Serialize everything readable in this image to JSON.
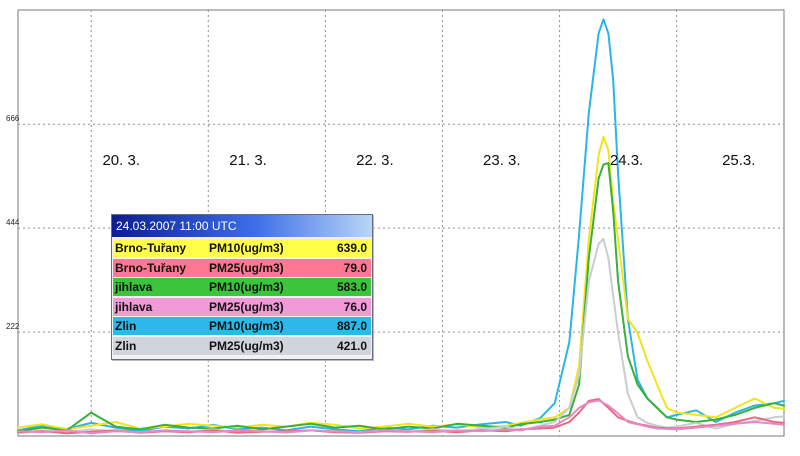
{
  "chart_data": {
    "type": "line",
    "x_unit": "hours since 20.03.2007 00:00",
    "y_ticks": [
      222,
      444,
      666
    ],
    "ylim": [
      0,
      910
    ],
    "xlim": [
      -15,
      142
    ],
    "grid": true,
    "day_labels": [
      {
        "text": "20. 3.",
        "x": 6
      },
      {
        "text": "21. 3.",
        "x": 32
      },
      {
        "text": "22. 3.",
        "x": 58
      },
      {
        "text": "23. 3.",
        "x": 84
      },
      {
        "text": "24.3.",
        "x": 110
      },
      {
        "text": "25.3.",
        "x": 133
      }
    ],
    "day_separators_x": [
      0,
      24,
      48,
      72,
      96,
      120
    ],
    "series": [
      {
        "name": "Zlin PM10",
        "color": "#29b6e6",
        "x": [
          -15,
          -10,
          -5,
          0,
          5,
          10,
          15,
          20,
          25,
          30,
          35,
          40,
          45,
          50,
          55,
          60,
          65,
          70,
          75,
          80,
          85,
          88,
          92,
          95,
          98,
          100,
          102,
          104,
          105,
          106,
          107,
          108,
          110,
          112,
          114,
          116,
          118,
          120,
          124,
          128,
          132,
          136,
          140,
          142
        ],
        "y": [
          12,
          22,
          15,
          28,
          18,
          10,
          20,
          16,
          24,
          14,
          18,
          12,
          20,
          14,
          10,
          18,
          14,
          22,
          18,
          25,
          30,
          22,
          38,
          70,
          200,
          430,
          690,
          860,
          890,
          860,
          760,
          560,
          250,
          120,
          80,
          60,
          40,
          45,
          55,
          30,
          50,
          65,
          70,
          75
        ]
      },
      {
        "name": "Brno-Tuřany PM10",
        "color": "#f0e41c",
        "x": [
          -15,
          -10,
          -5,
          0,
          5,
          10,
          15,
          20,
          25,
          30,
          35,
          40,
          45,
          50,
          55,
          60,
          65,
          70,
          75,
          80,
          85,
          88,
          92,
          95,
          98,
          100,
          102,
          104,
          105,
          106,
          107,
          108,
          110,
          112,
          114,
          116,
          118,
          120,
          124,
          128,
          132,
          136,
          140,
          142
        ],
        "y": [
          18,
          25,
          14,
          22,
          30,
          16,
          20,
          26,
          22,
          18,
          24,
          20,
          28,
          24,
          16,
          20,
          26,
          20,
          25,
          18,
          22,
          28,
          35,
          40,
          60,
          150,
          420,
          600,
          639,
          610,
          500,
          420,
          250,
          220,
          160,
          110,
          60,
          50,
          45,
          40,
          60,
          80,
          60,
          58
        ]
      },
      {
        "name": "jihlava PM10",
        "color": "#3ab03a",
        "x": [
          -15,
          -10,
          -5,
          0,
          5,
          10,
          15,
          20,
          25,
          30,
          35,
          40,
          45,
          50,
          55,
          60,
          65,
          70,
          75,
          80,
          85,
          88,
          92,
          95,
          98,
          100,
          102,
          104,
          105,
          106,
          107,
          108,
          110,
          112,
          114,
          116,
          118,
          120,
          124,
          128,
          132,
          136,
          140,
          142
        ],
        "y": [
          10,
          18,
          12,
          50,
          20,
          14,
          24,
          18,
          16,
          22,
          14,
          20,
          26,
          18,
          22,
          14,
          20,
          16,
          26,
          22,
          18,
          25,
          30,
          35,
          45,
          110,
          380,
          550,
          580,
          583,
          480,
          330,
          170,
          110,
          80,
          60,
          40,
          35,
          30,
          35,
          45,
          60,
          70,
          65
        ]
      },
      {
        "name": "Zlin PM25",
        "color": "#c8ccd4",
        "x": [
          -15,
          -10,
          -5,
          0,
          5,
          10,
          15,
          20,
          25,
          30,
          35,
          40,
          45,
          50,
          55,
          60,
          65,
          70,
          75,
          80,
          85,
          88,
          92,
          95,
          98,
          100,
          102,
          104,
          105,
          106,
          107,
          108,
          110,
          112,
          114,
          116,
          118,
          120,
          124,
          128,
          132,
          136,
          140,
          142
        ],
        "y": [
          6,
          12,
          8,
          14,
          10,
          8,
          12,
          9,
          14,
          8,
          10,
          7,
          12,
          9,
          8,
          12,
          9,
          14,
          11,
          15,
          20,
          12,
          22,
          30,
          60,
          130,
          330,
          410,
          421,
          380,
          300,
          220,
          90,
          40,
          28,
          22,
          18,
          20,
          28,
          16,
          26,
          32,
          40,
          42
        ]
      },
      {
        "name": "Brno-Tuřany PM25",
        "color": "#e86b7e",
        "x": [
          -15,
          -10,
          -5,
          0,
          5,
          10,
          15,
          20,
          25,
          30,
          35,
          40,
          45,
          50,
          55,
          60,
          65,
          70,
          75,
          80,
          85,
          88,
          92,
          95,
          98,
          100,
          102,
          104,
          106,
          108,
          110,
          112,
          114,
          116,
          120,
          124,
          128,
          132,
          136,
          140,
          142
        ],
        "y": [
          8,
          10,
          6,
          9,
          12,
          7,
          10,
          8,
          12,
          7,
          9,
          10,
          12,
          8,
          7,
          10,
          9,
          11,
          8,
          12,
          10,
          14,
          16,
          18,
          30,
          50,
          75,
          79,
          60,
          40,
          32,
          26,
          22,
          18,
          16,
          20,
          24,
          30,
          40,
          30,
          28
        ]
      },
      {
        "name": "jihlava PM25",
        "color": "#e888c8",
        "x": [
          -15,
          -10,
          -5,
          0,
          5,
          10,
          15,
          20,
          25,
          30,
          35,
          40,
          45,
          50,
          55,
          60,
          65,
          70,
          75,
          80,
          85,
          88,
          92,
          95,
          98,
          100,
          102,
          104,
          106,
          108,
          110,
          112,
          114,
          116,
          120,
          124,
          128,
          132,
          136,
          140,
          142
        ],
        "y": [
          10,
          8,
          12,
          6,
          10,
          8,
          12,
          10,
          8,
          12,
          10,
          8,
          12,
          10,
          8,
          12,
          10,
          8,
          12,
          10,
          14,
          12,
          20,
          22,
          40,
          60,
          72,
          76,
          65,
          48,
          30,
          25,
          20,
          16,
          14,
          18,
          22,
          26,
          30,
          26,
          24
        ]
      }
    ]
  },
  "tooltip": {
    "title": "24.03.2007 11:00 UTC",
    "rows": [
      {
        "station": "Brno-Tuřany",
        "param": "PM10(ug/m3)",
        "value": "639.0",
        "bg": "#ffff4a"
      },
      {
        "station": "Brno-Tuřany",
        "param": "PM25(ug/m3)",
        "value": "79.0",
        "bg": "#ff7890"
      },
      {
        "station": "jihlava",
        "param": "PM10(ug/m3)",
        "value": "583.0",
        "bg": "#3cc43c"
      },
      {
        "station": "jihlava",
        "param": "PM25(ug/m3)",
        "value": "76.0",
        "bg": "#f29ad8"
      },
      {
        "station": "Zlin",
        "param": "PM10(ug/m3)",
        "value": "887.0",
        "bg": "#2cb8e8"
      },
      {
        "station": "Zlin",
        "param": "PM25(ug/m3)",
        "value": "421.0",
        "bg": "#d0d4dc"
      }
    ]
  }
}
